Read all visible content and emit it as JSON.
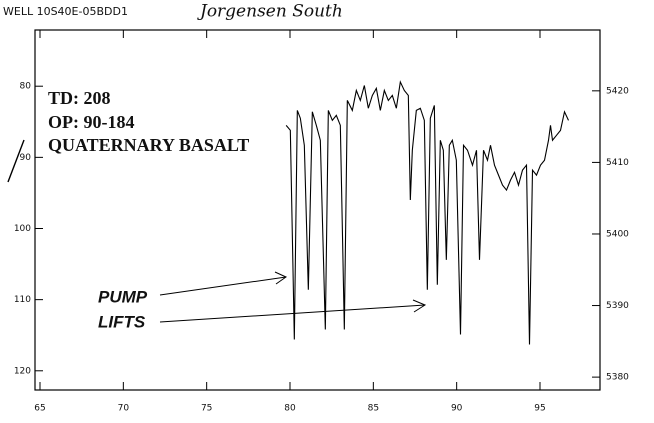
{
  "chart_data": {
    "type": "line",
    "title": "WELL 10S40E-05BDD1",
    "subtitle": "Jorgensen South",
    "annotations": [
      "TD: 208",
      "OP: 90-184",
      "QUATERNARY BASALT",
      "PUMP",
      "LIFTS"
    ],
    "x": [
      79.77,
      80.02,
      80.26,
      80.44,
      80.62,
      80.86,
      81.1,
      81.34,
      81.58,
      81.82,
      82.12,
      82.3,
      82.54,
      82.78,
      83.02,
      83.26,
      83.44,
      83.74,
      83.98,
      84.22,
      84.46,
      84.7,
      84.94,
      85.18,
      85.42,
      85.66,
      85.9,
      86.14,
      86.38,
      86.62,
      86.86,
      87.1,
      87.22,
      87.34,
      87.58,
      87.82,
      88.06,
      88.24,
      88.42,
      88.66,
      88.84,
      89.02,
      89.2,
      89.38,
      89.56,
      89.74,
      89.98,
      90.23,
      90.41,
      90.65,
      90.95,
      91.19,
      91.37,
      91.61,
      91.85,
      92.03,
      92.27,
      92.51,
      92.75,
      92.99,
      93.23,
      93.47,
      93.71,
      93.95,
      94.19,
      94.37,
      94.55,
      94.79,
      95.03,
      95.27,
      95.51,
      95.63,
      95.75,
      95.99,
      96.23,
      96.47,
      96.71
    ],
    "values": [
      85.5,
      86.2,
      115.6,
      83.4,
      84.5,
      88.3,
      108.6,
      83.6,
      85.5,
      87.6,
      114.2,
      83.4,
      84.8,
      84.1,
      85.5,
      114.2,
      82.0,
      83.4,
      80.6,
      82.0,
      79.9,
      83.1,
      81.3,
      80.3,
      83.4,
      80.6,
      82.0,
      81.3,
      83.1,
      79.4,
      80.6,
      81.3,
      96.0,
      89.0,
      83.4,
      83.1,
      84.8,
      108.6,
      84.5,
      82.7,
      107.9,
      87.6,
      89.0,
      104.4,
      88.3,
      87.6,
      90.4,
      114.9,
      88.3,
      89.0,
      91.1,
      89.0,
      104.4,
      89.0,
      90.4,
      88.3,
      91.1,
      92.5,
      93.9,
      94.6,
      93.2,
      92.1,
      93.9,
      91.8,
      91.1,
      116.3,
      91.8,
      92.5,
      91.1,
      90.4,
      87.6,
      85.5,
      87.6,
      86.9,
      86.2,
      83.6,
      84.8
    ],
    "color": "#000000",
    "xlim": [
      64.7,
      98.6
    ],
    "xticks": [
      65,
      70,
      75,
      80,
      85,
      90,
      95
    ],
    "ylim": [
      122.7,
      72.1
    ],
    "yticks": [
      80,
      90,
      100,
      110,
      120
    ],
    "y2lim": [
      5378.2,
      5428.5
    ],
    "y2ticks": [
      5380,
      5390,
      5400,
      5410,
      5420
    ]
  }
}
